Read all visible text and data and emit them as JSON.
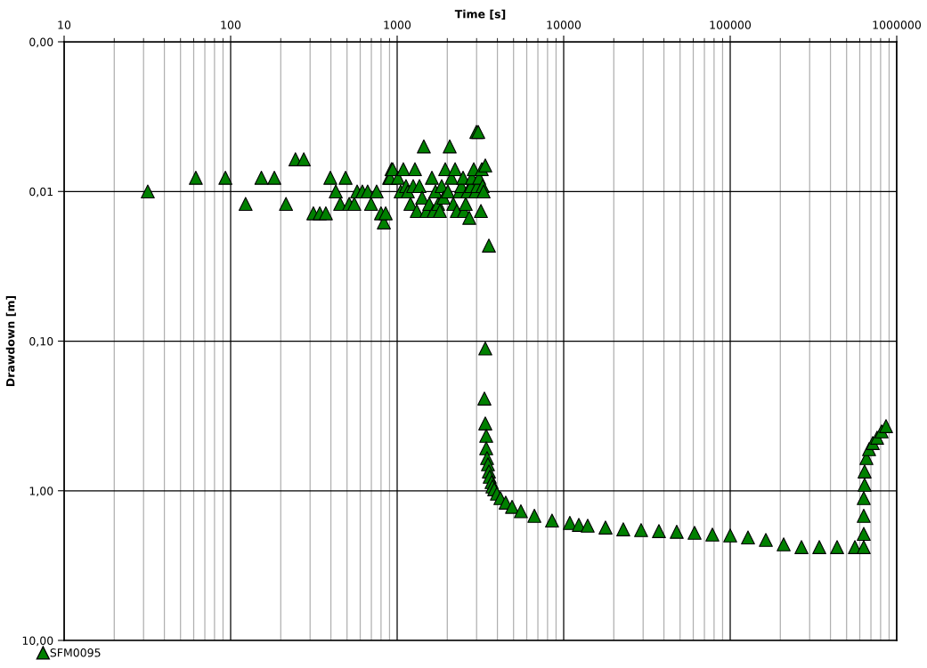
{
  "chart_data": {
    "type": "scatter",
    "xlabel": "Time [s]",
    "ylabel": "Drawdown [m]",
    "log": "xy",
    "grid": true,
    "legend": "bottom left",
    "marker": "triangle",
    "xlim": [
      10,
      1000000
    ],
    "xticks": [
      10,
      100,
      1000,
      10000,
      100000,
      1000000
    ],
    "ylim": [
      10,
      0.001
    ],
    "yticks": [
      {
        "value": 0.001,
        "label": "0,00"
      },
      {
        "value": 0.01,
        "label": "0,01"
      },
      {
        "value": 0.1,
        "label": "0,10"
      },
      {
        "value": 1,
        "label": "1,00"
      },
      {
        "value": 10,
        "label": "10,00"
      }
    ],
    "series": [
      {
        "name": "SFM0095",
        "color": "#008000",
        "x": [
          31.8,
          61.8,
          93,
          123,
          153,
          183,
          215,
          245,
          275,
          314,
          343,
          373,
          397,
          428,
          455,
          490,
          515,
          553,
          575,
          618,
          665,
          697,
          753,
          800,
          832,
          853,
          895,
          925,
          906,
          940,
          1012,
          1050,
          1089,
          1130,
          1159,
          1202,
          1248,
          1279,
          1312,
          1361,
          1412,
          1446,
          1500,
          1558,
          1617,
          1656,
          1698,
          1762,
          1806,
          1851,
          1897,
          1944,
          2017,
          2068,
          2120,
          2173,
          2228,
          2283,
          2368,
          2428,
          2488,
          2518,
          2581,
          2645,
          2711,
          2779,
          2812,
          2884,
          2955,
          2991,
          3028,
          3067,
          3105,
          3184,
          3221,
          3260,
          3304,
          3383,
          3556,
          3383,
          3342,
          3383,
          3427,
          3427,
          3467,
          3510,
          3556,
          3597,
          3690,
          3733,
          3828,
          3972,
          4169,
          4487,
          4898,
          5534,
          6668,
          8511,
          10890,
          12330,
          13940,
          17830,
          22800,
          29170,
          37330,
          47750,
          61090,
          78160,
          100000,
          127900,
          163700,
          209400,
          267900,
          342800,
          438500,
          561000,
          633800,
          633800,
          633800,
          633800,
          641300,
          641300,
          657700,
          682300,
          717800,
          762100,
          810900,
          862600
        ],
        "values": [
          0.01,
          0.0081,
          0.0081,
          0.0121,
          0.0081,
          0.0081,
          0.0121,
          0.0061,
          0.0061,
          0.014,
          0.014,
          0.014,
          0.0081,
          0.01,
          0.0121,
          0.0081,
          0.0121,
          0.0121,
          0.01,
          0.01,
          0.01,
          0.0121,
          0.01,
          0.014,
          0.0161,
          0.014,
          0.0081,
          0.0071,
          0.0081,
          0.0071,
          0.0081,
          0.01,
          0.0071,
          0.0092,
          0.01,
          0.0121,
          0.0092,
          0.0071,
          0.0135,
          0.0092,
          0.011,
          0.005,
          0.0135,
          0.0121,
          0.0081,
          0.0135,
          0.01,
          0.0121,
          0.0135,
          0.0092,
          0.011,
          0.0071,
          0.01,
          0.005,
          0.0081,
          0.0121,
          0.0071,
          0.0135,
          0.01,
          0.0092,
          0.0081,
          0.0135,
          0.0121,
          0.01,
          0.015,
          0.0092,
          0.0081,
          0.0071,
          0.01,
          0.004,
          0.0092,
          0.004,
          0.0081,
          0.0135,
          0.0071,
          0.0092,
          0.01,
          0.0067,
          0.023,
          0.112,
          0.242,
          0.355,
          0.429,
          0.52,
          0.605,
          0.665,
          0.743,
          0.806,
          0.875,
          0.937,
          0.977,
          1.045,
          1.12,
          1.2,
          1.28,
          1.37,
          1.47,
          1.58,
          1.64,
          1.69,
          1.71,
          1.76,
          1.81,
          1.83,
          1.86,
          1.88,
          1.91,
          1.96,
          1.99,
          2.05,
          2.13,
          2.28,
          2.38,
          2.38,
          2.38,
          2.38,
          2.38,
          1.94,
          1.47,
          1.12,
          0.912,
          0.743,
          0.605,
          0.527,
          0.48,
          0.442,
          0.401,
          0.37
        ]
      }
    ]
  }
}
